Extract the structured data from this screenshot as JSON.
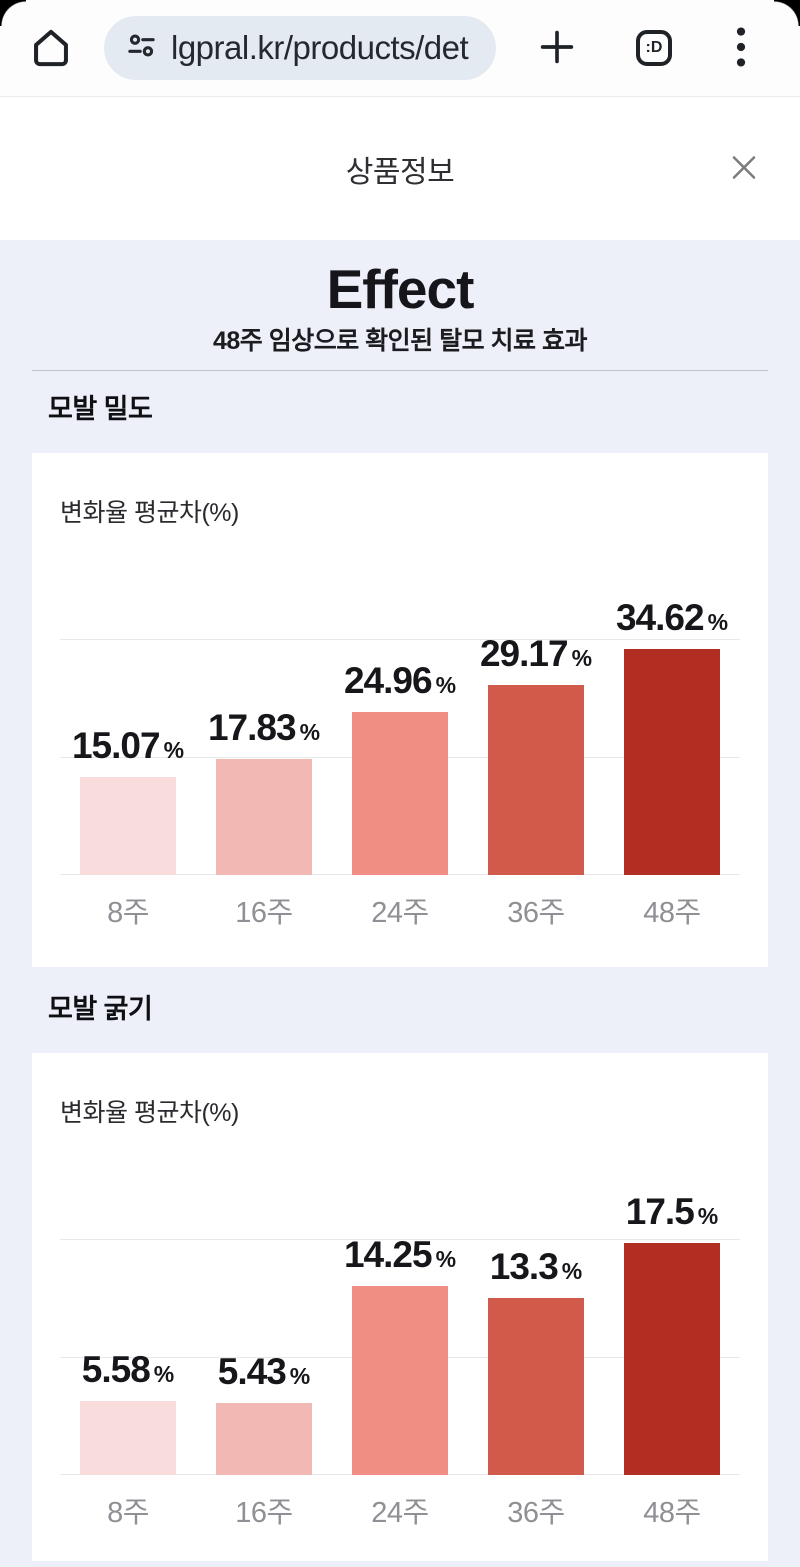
{
  "browser": {
    "url": "lgpral.kr/products/det",
    "tab_count": ":D"
  },
  "modal": {
    "title": "상품정보"
  },
  "content": {
    "title": "Effect",
    "subtitle": "48주 임상으로 확인된 탈모 치료 효과"
  },
  "colors": {
    "page_background": "#eef0f9",
    "url_pill": "#e3eaf2",
    "grid": "#e8e8ea",
    "bar_palette": [
      "#f9dcdc",
      "#f2b8b4",
      "#f08e83",
      "#d25a4b",
      "#b22d22"
    ]
  },
  "chart_data": [
    {
      "type": "bar",
      "title": "모발 밀도",
      "ylabel": "변화율 평균차(%)",
      "categories": [
        "8주",
        "16주",
        "24주",
        "36주",
        "48주"
      ],
      "values": [
        15.07,
        17.83,
        24.96,
        29.17,
        34.62
      ],
      "value_suffix": "%",
      "bar_colors": [
        "#f9dcdc",
        "#f2b8b4",
        "#f08e83",
        "#d25a4b",
        "#b22d22"
      ],
      "ylim": [
        0,
        36
      ],
      "grid": true,
      "legend": false
    },
    {
      "type": "bar",
      "title": "모발 굵기",
      "ylabel": "변화율 평균차(%)",
      "categories": [
        "8주",
        "16주",
        "24주",
        "36주",
        "48주"
      ],
      "values": [
        5.58,
        5.43,
        14.25,
        13.3,
        17.5
      ],
      "value_suffix": "%",
      "bar_colors": [
        "#f9dcdc",
        "#f2b8b4",
        "#f08e83",
        "#d25a4b",
        "#b22d22"
      ],
      "ylim": [
        0,
        17.7
      ],
      "grid": true,
      "legend": false
    }
  ]
}
